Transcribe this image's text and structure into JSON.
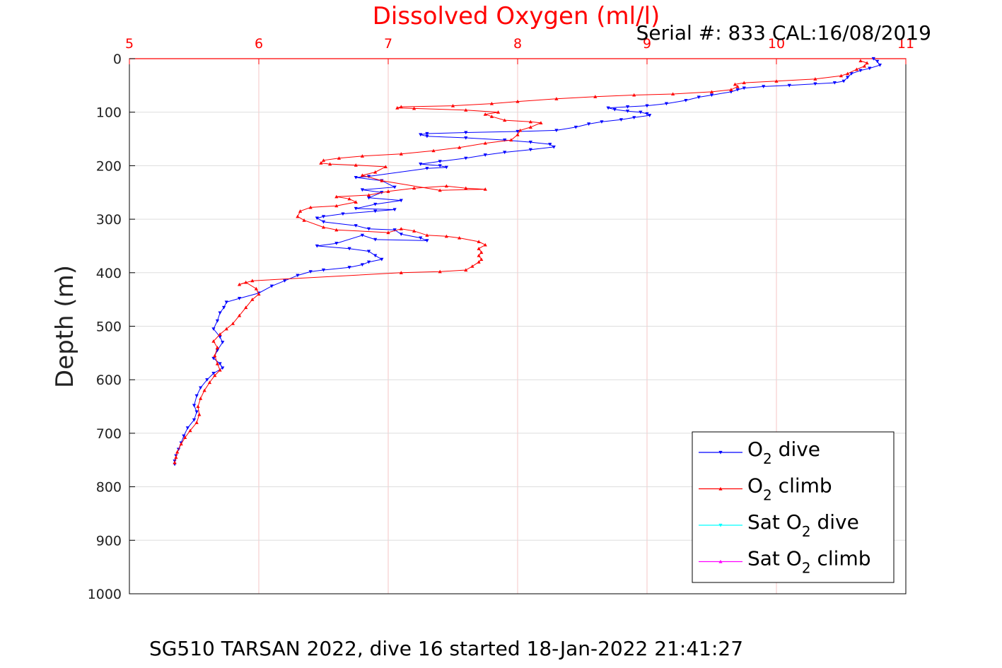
{
  "chart_data": {
    "type": "scatter",
    "title": "Dissolved Oxygen (ml/l)",
    "annotation": "Serial #: 833  CAL:16/08/2019",
    "caption": "SG510 TARSAN 2022, dive 16 started 18-Jan-2022 21:41:27",
    "ylabel": "Depth (m)",
    "xlabel": "",
    "xlim": [
      5,
      11
    ],
    "ylim": [
      0,
      1000
    ],
    "y_reversed": true,
    "x_axis_position": "top",
    "grid": true,
    "legend_position": "bottom-right",
    "xticks": [
      "5",
      "6",
      "7",
      "8",
      "9",
      "10",
      "11"
    ],
    "yticks": [
      "0",
      "100",
      "200",
      "300",
      "400",
      "500",
      "600",
      "700",
      "800",
      "900",
      "1000"
    ],
    "legend": [
      {
        "prefix": "O",
        "sub": "2",
        "suffix": " dive",
        "color": "#0000ff",
        "marker": "down"
      },
      {
        "prefix": "O",
        "sub": "2",
        "suffix": " climb",
        "color": "#ff0000",
        "marker": "up"
      },
      {
        "prefix": "Sat O",
        "sub": "2",
        "suffix": " dive",
        "color": "#00ffff",
        "marker": "down"
      },
      {
        "prefix": "Sat O",
        "sub": "2",
        "suffix": " climb",
        "color": "#ff00ff",
        "marker": "up"
      }
    ],
    "series": [
      {
        "name": "O2 dive",
        "color": "#0000ff",
        "marker": "down",
        "points": [
          [
            10.75,
            0
          ],
          [
            10.78,
            5
          ],
          [
            10.8,
            12
          ],
          [
            10.72,
            18
          ],
          [
            10.65,
            22
          ],
          [
            10.58,
            28
          ],
          [
            10.55,
            35
          ],
          [
            10.52,
            42
          ],
          [
            10.45,
            45
          ],
          [
            10.3,
            47
          ],
          [
            10.1,
            50
          ],
          [
            9.9,
            52
          ],
          [
            9.75,
            55
          ],
          [
            9.7,
            58
          ],
          [
            9.65,
            62
          ],
          [
            9.5,
            68
          ],
          [
            9.4,
            72
          ],
          [
            9.3,
            78
          ],
          [
            9.15,
            84
          ],
          [
            9.0,
            88
          ],
          [
            8.85,
            90
          ],
          [
            8.7,
            92
          ],
          [
            8.75,
            95
          ],
          [
            8.85,
            98
          ],
          [
            8.95,
            100
          ],
          [
            9.0,
            103
          ],
          [
            9.02,
            106
          ],
          [
            8.9,
            110
          ],
          [
            8.8,
            114
          ],
          [
            8.65,
            118
          ],
          [
            8.55,
            122
          ],
          [
            8.45,
            128
          ],
          [
            8.3,
            134
          ],
          [
            8.0,
            136
          ],
          [
            7.6,
            138
          ],
          [
            7.3,
            140
          ],
          [
            7.25,
            142
          ],
          [
            7.3,
            145
          ],
          [
            7.6,
            148
          ],
          [
            7.9,
            152
          ],
          [
            8.1,
            156
          ],
          [
            8.25,
            160
          ],
          [
            8.28,
            165
          ],
          [
            8.1,
            170
          ],
          [
            7.9,
            175
          ],
          [
            7.75,
            180
          ],
          [
            7.6,
            186
          ],
          [
            7.4,
            192
          ],
          [
            7.25,
            197
          ],
          [
            7.4,
            200
          ],
          [
            7.45,
            203
          ],
          [
            7.3,
            205
          ],
          [
            6.85,
            220
          ],
          [
            6.75,
            222
          ],
          [
            6.95,
            228
          ],
          [
            7.05,
            240
          ],
          [
            6.8,
            245
          ],
          [
            6.95,
            250
          ],
          [
            6.85,
            260
          ],
          [
            7.1,
            265
          ],
          [
            6.9,
            272
          ],
          [
            6.75,
            280
          ],
          [
            7.05,
            282
          ],
          [
            6.9,
            285
          ],
          [
            6.65,
            290
          ],
          [
            6.5,
            295
          ],
          [
            6.45,
            298
          ],
          [
            6.5,
            305
          ],
          [
            6.75,
            312
          ],
          [
            6.85,
            318
          ],
          [
            7.05,
            320
          ],
          [
            7.1,
            328
          ],
          [
            7.25,
            335
          ],
          [
            7.3,
            340
          ],
          [
            6.9,
            338
          ],
          [
            6.8,
            330
          ],
          [
            6.6,
            345
          ],
          [
            6.45,
            350
          ],
          [
            6.7,
            355
          ],
          [
            6.85,
            360
          ],
          [
            6.9,
            368
          ],
          [
            6.95,
            375
          ],
          [
            6.85,
            380
          ],
          [
            6.8,
            385
          ],
          [
            6.7,
            390
          ],
          [
            6.5,
            395
          ],
          [
            6.4,
            398
          ],
          [
            6.3,
            405
          ],
          [
            6.2,
            415
          ],
          [
            6.1,
            425
          ],
          [
            6.0,
            438
          ],
          [
            5.85,
            448
          ],
          [
            5.75,
            455
          ],
          [
            5.73,
            465
          ],
          [
            5.7,
            475
          ],
          [
            5.68,
            490
          ],
          [
            5.65,
            505
          ],
          [
            5.7,
            520
          ],
          [
            5.72,
            530
          ],
          [
            5.68,
            545
          ],
          [
            5.65,
            560
          ],
          [
            5.7,
            570
          ],
          [
            5.72,
            578
          ],
          [
            5.65,
            588
          ],
          [
            5.6,
            600
          ],
          [
            5.55,
            615
          ],
          [
            5.52,
            630
          ],
          [
            5.5,
            648
          ],
          [
            5.52,
            660
          ],
          [
            5.5,
            675
          ],
          [
            5.45,
            690
          ],
          [
            5.42,
            705
          ],
          [
            5.4,
            718
          ],
          [
            5.38,
            730
          ],
          [
            5.36,
            742
          ],
          [
            5.35,
            752
          ],
          [
            5.35,
            758
          ]
        ]
      },
      {
        "name": "O2 climb",
        "color": "#ff0000",
        "marker": "up",
        "points": [
          [
            5.35,
            755
          ],
          [
            5.36,
            745
          ],
          [
            5.37,
            735
          ],
          [
            5.4,
            720
          ],
          [
            5.43,
            708
          ],
          [
            5.47,
            695
          ],
          [
            5.52,
            680
          ],
          [
            5.54,
            665
          ],
          [
            5.53,
            650
          ],
          [
            5.55,
            635
          ],
          [
            5.58,
            620
          ],
          [
            5.62,
            605
          ],
          [
            5.66,
            592
          ],
          [
            5.7,
            582
          ],
          [
            5.68,
            570
          ],
          [
            5.66,
            555
          ],
          [
            5.68,
            540
          ],
          [
            5.65,
            528
          ],
          [
            5.7,
            515
          ],
          [
            5.75,
            505
          ],
          [
            5.8,
            495
          ],
          [
            5.85,
            480
          ],
          [
            5.9,
            465
          ],
          [
            5.95,
            450
          ],
          [
            6.0,
            440
          ],
          [
            5.98,
            430
          ],
          [
            5.9,
            418
          ],
          [
            5.85,
            422
          ],
          [
            5.95,
            415
          ],
          [
            7.1,
            400
          ],
          [
            7.4,
            398
          ],
          [
            7.6,
            395
          ],
          [
            7.65,
            388
          ],
          [
            7.7,
            380
          ],
          [
            7.72,
            375
          ],
          [
            7.7,
            368
          ],
          [
            7.72,
            362
          ],
          [
            7.7,
            355
          ],
          [
            7.75,
            348
          ],
          [
            7.7,
            342
          ],
          [
            7.55,
            335
          ],
          [
            7.45,
            332
          ],
          [
            7.3,
            330
          ],
          [
            7.2,
            322
          ],
          [
            7.1,
            318
          ],
          [
            7.0,
            325
          ],
          [
            6.6,
            320
          ],
          [
            6.5,
            315
          ],
          [
            6.35,
            302
          ],
          [
            6.3,
            295
          ],
          [
            6.32,
            285
          ],
          [
            6.4,
            278
          ],
          [
            6.6,
            275
          ],
          [
            6.75,
            268
          ],
          [
            6.7,
            262
          ],
          [
            6.6,
            258
          ],
          [
            6.85,
            255
          ],
          [
            7.0,
            248
          ],
          [
            7.2,
            242
          ],
          [
            7.45,
            238
          ],
          [
            7.6,
            242
          ],
          [
            7.75,
            244
          ],
          [
            7.4,
            246
          ],
          [
            6.95,
            228
          ],
          [
            6.8,
            218
          ],
          [
            6.9,
            212
          ],
          [
            6.98,
            202
          ],
          [
            6.75,
            199
          ],
          [
            6.55,
            197
          ],
          [
            6.48,
            195
          ],
          [
            6.5,
            190
          ],
          [
            6.62,
            186
          ],
          [
            6.8,
            182
          ],
          [
            7.1,
            178
          ],
          [
            7.35,
            172
          ],
          [
            7.55,
            166
          ],
          [
            7.75,
            158
          ],
          [
            7.95,
            152
          ],
          [
            8.0,
            142
          ],
          [
            8.02,
            134
          ],
          [
            8.1,
            128
          ],
          [
            8.18,
            120
          ],
          [
            8.1,
            118
          ],
          [
            7.9,
            115
          ],
          [
            7.8,
            108
          ],
          [
            7.75,
            104
          ],
          [
            7.85,
            100
          ],
          [
            7.6,
            96
          ],
          [
            7.2,
            93
          ],
          [
            7.07,
            92
          ],
          [
            7.1,
            90
          ],
          [
            7.5,
            88
          ],
          [
            7.8,
            84
          ],
          [
            8.0,
            80
          ],
          [
            8.3,
            75
          ],
          [
            8.6,
            71
          ],
          [
            8.9,
            68
          ],
          [
            9.2,
            66
          ],
          [
            9.5,
            62
          ],
          [
            9.65,
            58
          ],
          [
            9.7,
            52
          ],
          [
            9.68,
            48
          ],
          [
            9.75,
            45
          ],
          [
            10.0,
            42
          ],
          [
            10.3,
            38
          ],
          [
            10.5,
            32
          ],
          [
            10.55,
            28
          ],
          [
            10.62,
            20
          ],
          [
            10.68,
            14
          ],
          [
            10.7,
            8
          ],
          [
            10.65,
            4
          ]
        ]
      },
      {
        "name": "Sat O2 dive",
        "color": "#00ffff",
        "marker": "down",
        "points": []
      },
      {
        "name": "Sat O2 climb",
        "color": "#ff00ff",
        "marker": "up",
        "points": []
      }
    ]
  }
}
